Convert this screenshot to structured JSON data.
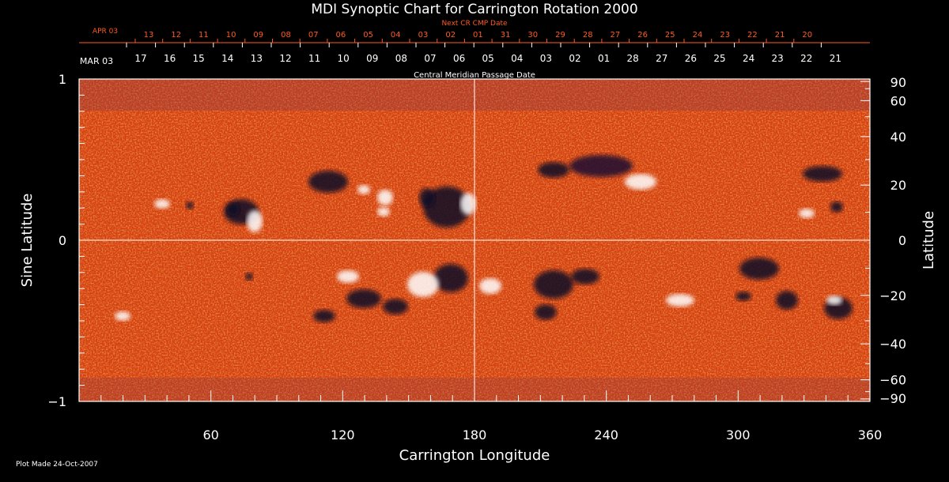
{
  "chart_data": {
    "type": "heatmap",
    "title": "MDI Synoptic Chart for Carrington Rotation 2000",
    "xlabel": "Carrington Longitude",
    "ylabel_left": "Sine Latitude",
    "ylabel_right": "Latitude",
    "xlim": [
      0,
      360
    ],
    "ylim_sine": [
      -1,
      1
    ],
    "x_ticks": [
      60,
      120,
      180,
      240,
      300,
      360
    ],
    "y_left_ticks": [
      {
        "v": 1,
        "label": "1"
      },
      {
        "v": 0,
        "label": "0"
      },
      {
        "v": -1,
        "label": "−1"
      }
    ],
    "y_right_ticks_deg": [
      {
        "v": 90,
        "label": "90"
      },
      {
        "v": 60,
        "label": "60"
      },
      {
        "v": 40,
        "label": "40"
      },
      {
        "v": 20,
        "label": "20"
      },
      {
        "v": 0,
        "label": "0"
      },
      {
        "v": -20,
        "label": "−20"
      },
      {
        "v": -40,
        "label": "−40"
      },
      {
        "v": -60,
        "label": "−60"
      },
      {
        "v": -90,
        "label": "−90"
      }
    ],
    "top_axis_upper": {
      "title": "Next CR CMP Date",
      "month_label": "APR 03",
      "labels": [
        "13",
        "12",
        "11",
        "10",
        "09",
        "08",
        "07",
        "06",
        "05",
        "04",
        "03",
        "02",
        "01",
        "31",
        "30",
        "29",
        "28",
        "27",
        "26",
        "25",
        "24",
        "23",
        "22",
        "21",
        "20"
      ]
    },
    "top_axis_lower": {
      "title": "Central Meridian Passage Date",
      "month_label": "MAR 03",
      "labels": [
        "17",
        "16",
        "15",
        "14",
        "13",
        "12",
        "11",
        "10",
        "09",
        "08",
        "07",
        "06",
        "05",
        "04",
        "03",
        "02",
        "01",
        "28",
        "27",
        "26",
        "25",
        "24",
        "23",
        "22",
        "21"
      ]
    },
    "footer_note": "Plot Made 24-Oct-2007",
    "grid": "center crosshair (longitude 180, latitude 0)",
    "colors": {
      "background": "#000000",
      "map_base": "#d8400e",
      "positive": "#ffffff",
      "negative": "#0d0828",
      "upper_axis_text": "#ff5a20",
      "axis": "#ffffff"
    }
  }
}
